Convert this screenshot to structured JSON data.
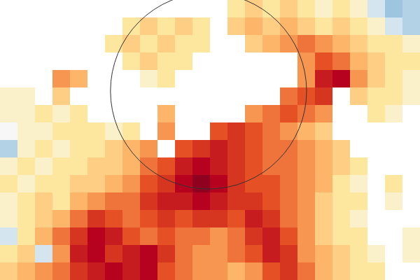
{
  "chart_data": {
    "type": "heatmap",
    "tick_labels": false,
    "color_range": [
      -12,
      12
    ],
    "cells": [
      [
        null,
        null,
        null,
        null,
        null,
        null,
        null,
        null,
        null,
        null,
        null,
        null,
        null,
        2,
        3,
        2,
        3,
        2,
        1,
        2,
        1,
        -1,
        -3,
        -2
      ],
      [
        null,
        null,
        null,
        null,
        null,
        null,
        null,
        2,
        3,
        2,
        3,
        2,
        null,
        3,
        4,
        3,
        4,
        3,
        2,
        3,
        2,
        1,
        -1,
        -2
      ],
      [
        null,
        null,
        null,
        null,
        null,
        null,
        2,
        3,
        2,
        3,
        2,
        2,
        null,
        null,
        3,
        4,
        5,
        6,
        5,
        4,
        3,
        2,
        2,
        1
      ],
      [
        null,
        null,
        null,
        null,
        null,
        null,
        null,
        2,
        3,
        2,
        2,
        null,
        null,
        null,
        null,
        null,
        null,
        5,
        7,
        6,
        4,
        3,
        2,
        2
      ],
      [
        null,
        null,
        null,
        5,
        4,
        null,
        null,
        null,
        1,
        2,
        null,
        null,
        null,
        null,
        null,
        null,
        null,
        5,
        9,
        10,
        5,
        3,
        2,
        1
      ],
      [
        1,
        1,
        null,
        3,
        null,
        null,
        null,
        null,
        null,
        null,
        null,
        null,
        null,
        null,
        null,
        null,
        6,
        7,
        8,
        null,
        3,
        2,
        2,
        1
      ],
      [
        1,
        1,
        2,
        1,
        2,
        null,
        null,
        null,
        null,
        4,
        null,
        null,
        null,
        null,
        5,
        6,
        7,
        6,
        5,
        null,
        null,
        2,
        1,
        null
      ],
      [
        0,
        1,
        1,
        2,
        2,
        2,
        1,
        2,
        null,
        5,
        null,
        null,
        7,
        8,
        7,
        6,
        5,
        4,
        3,
        null,
        null,
        null,
        null,
        null
      ],
      [
        -2,
        1,
        2,
        1,
        2,
        2,
        3,
        4,
        5,
        null,
        7,
        8,
        9,
        8,
        7,
        6,
        6,
        5,
        4,
        3,
        null,
        null,
        null,
        null
      ],
      [
        1,
        2,
        1,
        2,
        2,
        3,
        3,
        4,
        6,
        7,
        9,
        10,
        9,
        8,
        7,
        6,
        6,
        5,
        4,
        3,
        2,
        null,
        null,
        null
      ],
      [
        2,
        1,
        2,
        2,
        3,
        3,
        4,
        5,
        7,
        8,
        10,
        11,
        10,
        8,
        7,
        7,
        6,
        5,
        4,
        2,
        1,
        null,
        2,
        null
      ],
      [
        1,
        2,
        3,
        2,
        4,
        5,
        6,
        6,
        8,
        9,
        9,
        10,
        9,
        8,
        8,
        7,
        6,
        5,
        3,
        2,
        2,
        null,
        1,
        null
      ],
      [
        1,
        2,
        3,
        4,
        6,
        8,
        7,
        6,
        7,
        8,
        7,
        8,
        8,
        7,
        9,
        8,
        6,
        5,
        3,
        2,
        1,
        null,
        null,
        null
      ],
      [
        -1,
        2,
        4,
        6,
        8,
        10,
        9,
        7,
        6,
        7,
        6,
        6,
        5,
        6,
        8,
        9,
        7,
        5,
        3,
        2,
        2,
        null,
        null,
        1
      ],
      [
        2,
        3,
        -1,
        5,
        9,
        10,
        8,
        9,
        10,
        8,
        6,
        5,
        5,
        6,
        7,
        9,
        8,
        5,
        4,
        3,
        2,
        1,
        null,
        1
      ],
      [
        3,
        4,
        5,
        6,
        8,
        9,
        10,
        9,
        10,
        7,
        6,
        5,
        5,
        4,
        5,
        7,
        8,
        6,
        4,
        3,
        2,
        2,
        null,
        null
      ]
    ]
  }
}
